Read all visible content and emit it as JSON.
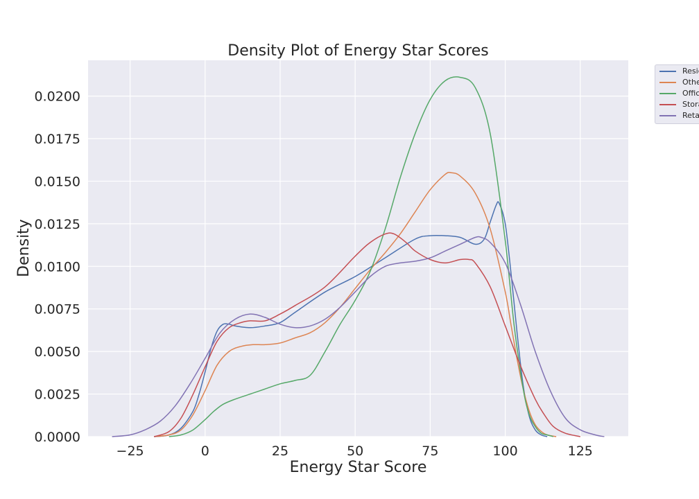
{
  "chart_data": {
    "type": "line",
    "title": "Density Plot of Energy Star Scores",
    "xlabel": "Energy Star Score",
    "ylabel": "Density",
    "xlim": [
      -39,
      141
    ],
    "ylim": [
      0,
      0.0221
    ],
    "xticks": [
      -25,
      0,
      25,
      50,
      75,
      100,
      125
    ],
    "xtick_labels": [
      "−25",
      "0",
      "25",
      "50",
      "75",
      "100",
      "125"
    ],
    "yticks": [
      0,
      0.0025,
      0.005,
      0.0075,
      0.01,
      0.0125,
      0.015,
      0.0175,
      0.02
    ],
    "ytick_labels": [
      "0.0000",
      "0.0025",
      "0.0050",
      "0.0075",
      "0.0100",
      "0.0125",
      "0.0150",
      "0.0175",
      "0.0200"
    ],
    "grid": true,
    "legend_position": "outside-top-right",
    "series": [
      {
        "name": "Resid",
        "color": "#4c72b0",
        "x": [
          -17,
          -12,
          -8,
          -4,
          -2,
          0,
          2,
          4,
          6,
          8,
          10,
          15,
          20,
          25,
          30,
          40,
          50,
          60,
          70,
          75,
          80,
          85,
          90,
          93,
          95,
          97,
          98,
          100,
          102,
          104,
          106,
          108,
          110,
          112,
          114
        ],
        "y": [
          0,
          0.0001,
          0.0005,
          0.0015,
          0.0025,
          0.0038,
          0.0052,
          0.0062,
          0.0066,
          0.0066,
          0.0065,
          0.0064,
          0.0065,
          0.0067,
          0.0073,
          0.0085,
          0.0094,
          0.0105,
          0.0116,
          0.0118,
          0.0118,
          0.0117,
          0.0113,
          0.0116,
          0.0126,
          0.0136,
          0.0137,
          0.0125,
          0.0095,
          0.006,
          0.003,
          0.0012,
          0.0004,
          0.0001,
          0
        ]
      },
      {
        "name": "Othe",
        "color": "#dd8452",
        "x": [
          -17,
          -12,
          -8,
          -4,
          0,
          4,
          8,
          12,
          16,
          20,
          25,
          30,
          35,
          40,
          45,
          50,
          55,
          60,
          65,
          70,
          75,
          80,
          82,
          85,
          90,
          95,
          100,
          102,
          104,
          106,
          108,
          110,
          112,
          114,
          117
        ],
        "y": [
          0,
          0.0001,
          0.0004,
          0.0013,
          0.0027,
          0.0042,
          0.005,
          0.0053,
          0.0054,
          0.0054,
          0.0055,
          0.0058,
          0.0061,
          0.0067,
          0.0076,
          0.0087,
          0.0098,
          0.0108,
          0.0119,
          0.0132,
          0.0145,
          0.0154,
          0.0155,
          0.0153,
          0.0143,
          0.0122,
          0.0085,
          0.0065,
          0.0045,
          0.0028,
          0.0015,
          0.0007,
          0.0003,
          0.0001,
          0
        ]
      },
      {
        "name": "Office",
        "color": "#55a868",
        "x": [
          -12,
          -8,
          -4,
          0,
          3,
          6,
          10,
          15,
          20,
          25,
          30,
          35,
          40,
          45,
          50,
          55,
          60,
          65,
          70,
          75,
          80,
          85,
          90,
          95,
          100,
          103,
          106,
          108,
          110,
          112,
          114,
          116
        ],
        "y": [
          0,
          0.0001,
          0.0004,
          0.001,
          0.0015,
          0.0019,
          0.0022,
          0.0025,
          0.0028,
          0.0031,
          0.0033,
          0.0036,
          0.005,
          0.0066,
          0.008,
          0.0097,
          0.0122,
          0.0152,
          0.0178,
          0.0198,
          0.0209,
          0.0211,
          0.0205,
          0.0178,
          0.0115,
          0.0065,
          0.0028,
          0.0013,
          0.0006,
          0.0002,
          0.0001,
          0
        ]
      },
      {
        "name": "Stora",
        "color": "#c44e52",
        "x": [
          -17,
          -12,
          -8,
          -4,
          0,
          4,
          8,
          12,
          15,
          20,
          25,
          30,
          40,
          50,
          55,
          60,
          63,
          67,
          70,
          75,
          80,
          85,
          88,
          90,
          95,
          100,
          105,
          110,
          113,
          116,
          120,
          125
        ],
        "y": [
          0,
          0.0003,
          0.0011,
          0.0025,
          0.0041,
          0.0056,
          0.0064,
          0.0067,
          0.0068,
          0.0068,
          0.0072,
          0.0077,
          0.0088,
          0.0106,
          0.0114,
          0.0119,
          0.0119,
          0.0114,
          0.0109,
          0.0104,
          0.0102,
          0.0104,
          0.0104,
          0.0102,
          0.0088,
          0.0065,
          0.0042,
          0.0022,
          0.0013,
          0.0006,
          0.0002,
          0
        ]
      },
      {
        "name": "Retai",
        "color": "#8172b3",
        "x": [
          -31,
          -25,
          -20,
          -15,
          -10,
          -5,
          0,
          5,
          10,
          15,
          20,
          25,
          30,
          35,
          40,
          45,
          50,
          55,
          60,
          65,
          70,
          75,
          80,
          85,
          90,
          92,
          95,
          100,
          105,
          110,
          115,
          120,
          125,
          130,
          133
        ],
        "y": [
          0,
          0.0001,
          0.0004,
          0.0009,
          0.0018,
          0.0031,
          0.0046,
          0.0061,
          0.0069,
          0.0072,
          0.007,
          0.0066,
          0.0064,
          0.0065,
          0.0069,
          0.0076,
          0.0085,
          0.0094,
          0.01,
          0.0102,
          0.0103,
          0.0105,
          0.0109,
          0.0113,
          0.0117,
          0.0117,
          0.0114,
          0.0102,
          0.0078,
          0.005,
          0.0027,
          0.0011,
          0.0004,
          0.0001,
          0
        ]
      }
    ]
  }
}
